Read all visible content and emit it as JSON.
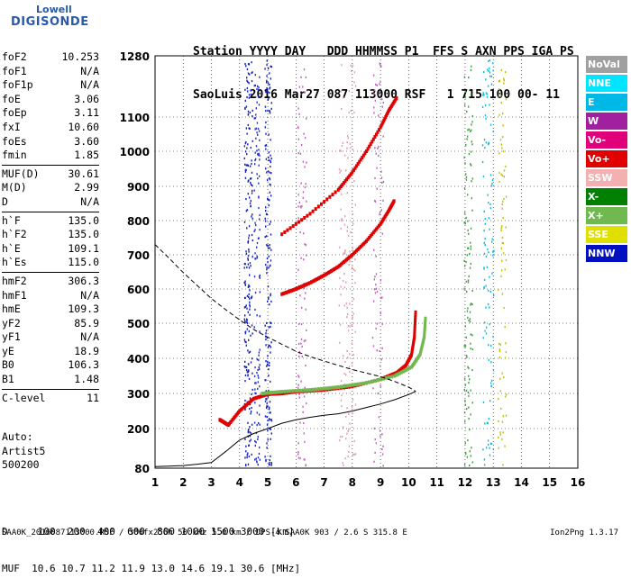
{
  "logo": {
    "brand_top": "Lowell",
    "brand_bottom": "DIGISONDE"
  },
  "header": {
    "line1": "Station YYYY DAY   DDD HHMMSS P1  FFS S AXN PPS IGA PS",
    "line2": "SaoLuis 2016 Mar27 087 113000 RSF   1 715 100 00- 11"
  },
  "params": [
    {
      "name": "foF2",
      "value": "10.253"
    },
    {
      "name": "foF1",
      "value": "N/A"
    },
    {
      "name": "foF1p",
      "value": "N/A"
    },
    {
      "name": "foE",
      "value": "3.06"
    },
    {
      "name": "foEp",
      "value": "3.11"
    },
    {
      "name": "fxI",
      "value": "10.60"
    },
    {
      "name": "foEs",
      "value": "3.60"
    },
    {
      "name": "fmin",
      "value": "1.85"
    },
    {
      "name": "MUF(D)",
      "value": "30.61"
    },
    {
      "name": "M(D)",
      "value": "2.99"
    },
    {
      "name": "D",
      "value": "N/A"
    },
    {
      "name": "h`F",
      "value": "135.0"
    },
    {
      "name": "h`F2",
      "value": "135.0"
    },
    {
      "name": "h`E",
      "value": "109.1"
    },
    {
      "name": "h`Es",
      "value": "115.0"
    },
    {
      "name": "hmF2",
      "value": "306.3"
    },
    {
      "name": "hmF1",
      "value": "N/A"
    },
    {
      "name": "hmE",
      "value": "109.3"
    },
    {
      "name": "yF2",
      "value": "85.9"
    },
    {
      "name": "yF1",
      "value": "N/A"
    },
    {
      "name": "yE",
      "value": "18.9"
    },
    {
      "name": "B0",
      "value": "106.3"
    },
    {
      "name": "B1",
      "value": "1.48"
    },
    {
      "name": "C-level",
      "value": "11"
    }
  ],
  "auto": {
    "line1": "Auto:",
    "line2": "Artist5",
    "line3": "500200"
  },
  "footer": {
    "d_row": "D     100  200  400  600  800 1000 1500 3000 [km]",
    "muf_row": "MUF  10.6 10.7 11.2 11.9 13.0 14.6 19.1 30.6 [MHz]",
    "meta": "SAA0K_2016087113000.RSF / 300fx256h 50 kHz 5.0 km / DPS-4 SAA0K 903 / 2.6 S 315.8 E",
    "version": "Ion2Png 1.3.17"
  },
  "legend": [
    {
      "label": "NoVal",
      "color": "#a0a0a0"
    },
    {
      "label": "NNE",
      "color": "#00e5ff"
    },
    {
      "label": "E",
      "color": "#00b8e6"
    },
    {
      "label": "W",
      "color": "#a020a0"
    },
    {
      "label": "Vo-",
      "color": "#e0007a"
    },
    {
      "label": "Vo+",
      "color": "#e00000"
    },
    {
      "label": "SSW",
      "color": "#f4b0b0"
    },
    {
      "label": "X-",
      "color": "#008000"
    },
    {
      "label": "X+",
      "color": "#70b850"
    },
    {
      "label": "SSE",
      "color": "#e0e000"
    },
    {
      "label": "NNW",
      "color": "#0010c0"
    }
  ],
  "chart_data": {
    "type": "scatter",
    "xlim": [
      1,
      16
    ],
    "ylim": [
      80,
      1280
    ],
    "x_ticks": [
      1,
      2,
      3,
      4,
      5,
      6,
      7,
      8,
      9,
      10,
      11,
      12,
      13,
      14,
      15,
      16
    ],
    "y_ticks": [
      80,
      200,
      300,
      400,
      500,
      600,
      700,
      800,
      900,
      1000,
      1100,
      1280
    ],
    "y_scale": "piecewise",
    "series": [
      {
        "name": "Vo+",
        "color": "#e00000",
        "x": [
          3.3,
          3.6,
          4,
          4.5,
          5,
          5.5,
          6,
          7,
          8,
          9,
          9.6,
          9.9,
          10.1,
          10.2,
          10.25
        ],
        "y": [
          225,
          210,
          250,
          285,
          298,
          300,
          305,
          310,
          320,
          340,
          360,
          380,
          410,
          460,
          540
        ]
      },
      {
        "name": "X+",
        "color": "#70b850",
        "x": [
          4.8,
          5.5,
          6.5,
          7.5,
          8.5,
          9.5,
          10.1,
          10.4,
          10.55,
          10.6
        ],
        "y": [
          300,
          305,
          310,
          318,
          330,
          350,
          375,
          410,
          460,
          520
        ]
      },
      {
        "name": "Vo+",
        "color": "#e00000",
        "x": [
          5.5,
          6,
          6.5,
          7,
          7.5,
          8,
          8.5,
          9,
          9.3,
          9.5
        ],
        "y": [
          585,
          600,
          618,
          640,
          665,
          700,
          740,
          790,
          830,
          860
        ]
      },
      {
        "name": "Vo+",
        "color": "#e00000",
        "x": [
          5.5,
          6.5,
          7.5,
          8,
          8.5,
          9,
          9.3,
          9.6
        ],
        "y": [
          760,
          820,
          890,
          940,
          1000,
          1070,
          1120,
          1160
        ]
      }
    ],
    "curves": [
      {
        "x": [
          1,
          1.5,
          2,
          2.5,
          3,
          3.5,
          4,
          4.5,
          5,
          5.5,
          6,
          6.5,
          7,
          7.5,
          8,
          8.5,
          9,
          9.5,
          10,
          10.25
        ],
        "y": [
          85,
          86,
          88,
          92,
          97,
          130,
          165,
          185,
          200,
          215,
          225,
          232,
          238,
          242,
          250,
          260,
          270,
          282,
          297,
          306
        ]
      },
      {
        "x": [
          1,
          1.5,
          2,
          2.5,
          3,
          3.5,
          4,
          4.5,
          5,
          5.5,
          6,
          6.5,
          7,
          7.5,
          8,
          8.5,
          9,
          9.5,
          10,
          10.25
        ],
        "y": [
          730,
          690,
          648,
          610,
          572,
          540,
          510,
          482,
          460,
          440,
          420,
          405,
          392,
          380,
          368,
          358,
          348,
          334,
          318,
          306
        ]
      }
    ]
  }
}
